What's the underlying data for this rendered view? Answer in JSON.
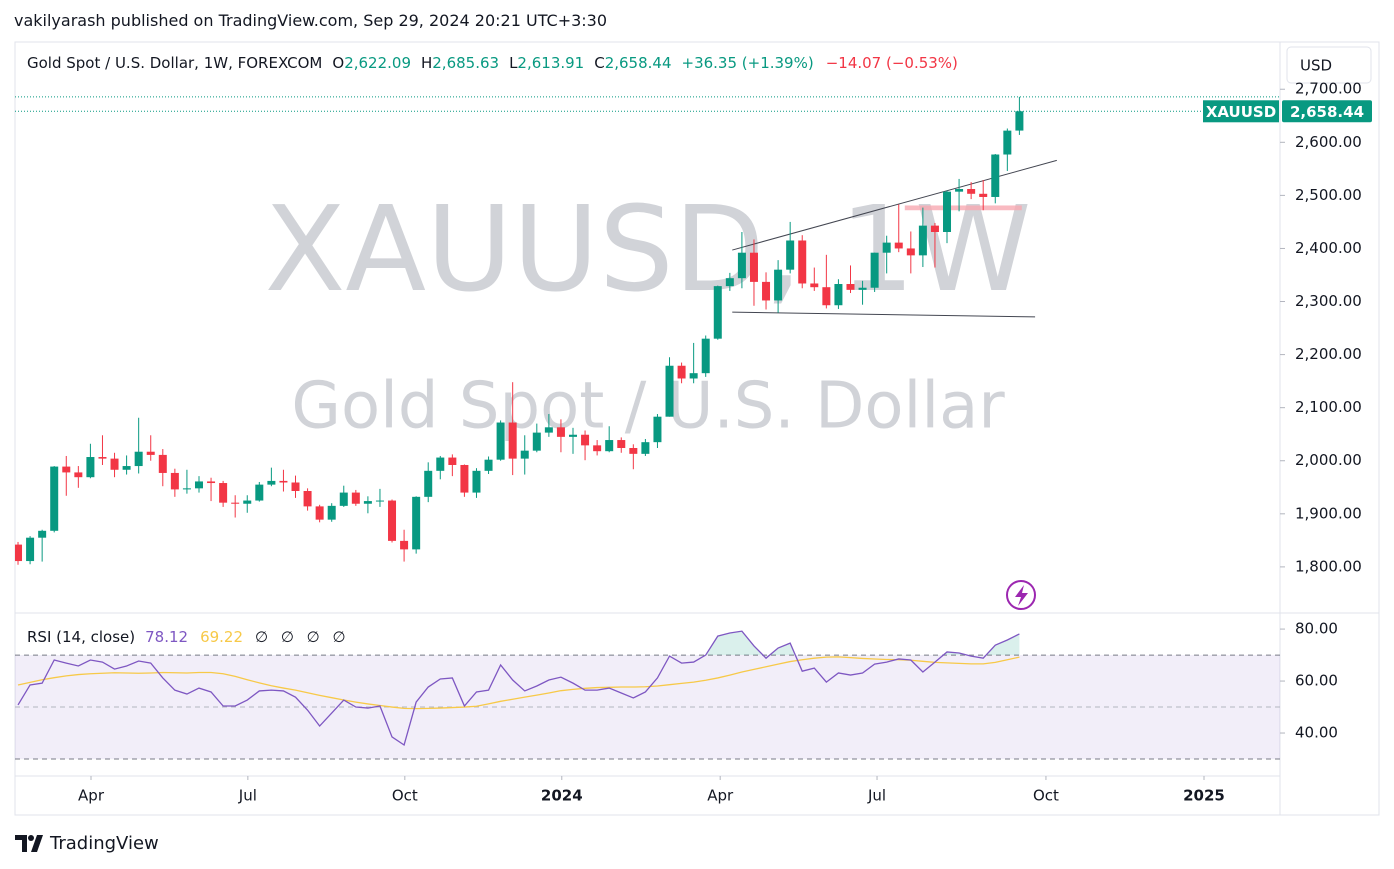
{
  "header": {
    "published": "vakilyarash published on TradingView.com, Sep 29, 2024 20:21 UTC+3:30",
    "currency_button": "USD",
    "brand": "TradingView"
  },
  "chart_data": [
    {
      "type": "candlestick",
      "title": "Gold Spot / U.S. Dollar, 1W, FOREXCOM",
      "ohlc_legend": [
        [
          "O",
          "2,622.09"
        ],
        [
          "H",
          "2,685.63"
        ],
        [
          "L",
          "2,613.91"
        ],
        [
          "C",
          "2,658.44"
        ]
      ],
      "change": "+36.35 (+1.39%)",
      "change_extended": "−14.07 (−0.53%)",
      "watermark": [
        "XAUUSD, 1W",
        "Gold Spot / U.S. Dollar"
      ],
      "symbol": "XAUUSD",
      "last_price": {
        "value": 2658.44,
        "label": "2,658.44"
      },
      "up_color": "#089981",
      "down_color": "#f23645",
      "xlim": [
        -0.25,
        104.6
      ],
      "ylim": [
        1715,
        2789
      ],
      "yticks": [
        {
          "value": 1800,
          "label": "1,800.00"
        },
        {
          "value": 1900,
          "label": "1,900.00"
        },
        {
          "value": 2000,
          "label": "2,000.00"
        },
        {
          "value": 2100,
          "label": "2,100.00"
        },
        {
          "value": 2200,
          "label": "2,200.00"
        },
        {
          "value": 2300,
          "label": "2,300.00"
        },
        {
          "value": 2400,
          "label": "2,400.00"
        },
        {
          "value": 2500,
          "label": "2,500.00"
        },
        {
          "value": 2600,
          "label": "2,600.00"
        },
        {
          "value": 2700,
          "label": "2,700.00"
        }
      ],
      "x": [
        0,
        1,
        2,
        3,
        4,
        5,
        6,
        7,
        8,
        9,
        10,
        11,
        12,
        13,
        14,
        15,
        16,
        17,
        18,
        19,
        20,
        21,
        22,
        23,
        24,
        25,
        26,
        27,
        28,
        29,
        30,
        31,
        32,
        33,
        34,
        35,
        36,
        37,
        38,
        39,
        40,
        41,
        42,
        43,
        44,
        45,
        46,
        47,
        48,
        49,
        50,
        51,
        52,
        53,
        54,
        55,
        56,
        57,
        58,
        59,
        60,
        61,
        62,
        63,
        64,
        65,
        66,
        67,
        68,
        69,
        70,
        71,
        72,
        73,
        74,
        75,
        76,
        77,
        78,
        79,
        80,
        81,
        82,
        83
      ],
      "open": [
        1842,
        1811,
        1855,
        1868,
        1989,
        1978,
        1969,
        2007,
        2004,
        1983,
        1990,
        2017,
        2011,
        1977,
        1946,
        1948,
        1961,
        1958,
        1921,
        1919,
        1925,
        1955,
        1962,
        1959,
        1943,
        1914,
        1889,
        1915,
        1940,
        1919,
        1924,
        1925,
        1849,
        1833,
        1932,
        1981,
        2006,
        1992,
        1940,
        1981,
        2002,
        2072,
        2004,
        2019,
        2053,
        2063,
        2045,
        2049,
        2029,
        2018,
        2039,
        2024,
        2013,
        2035,
        2083,
        2179,
        2155,
        2165,
        2230,
        2329,
        2344,
        2392,
        2337,
        2302,
        2360,
        2415,
        2334,
        2327,
        2293,
        2333,
        2322,
        2326,
        2392,
        2411,
        2400,
        2387,
        2443,
        2431,
        2507,
        2512,
        2503,
        2497,
        2577,
        2622.09
      ],
      "high": [
        1847,
        1858,
        1870,
        1990,
        2009,
        1990,
        2032,
        2048,
        2015,
        2010,
        2081,
        2048,
        2022,
        1985,
        1983,
        1971,
        1968,
        1962,
        1935,
        1935,
        1960,
        1987,
        1983,
        1972,
        1948,
        1917,
        1920,
        1953,
        1945,
        1933,
        1947,
        1927,
        1870,
        1933,
        1997,
        2009,
        2012,
        1993,
        1986,
        2008,
        2076,
        2148,
        2048,
        2070,
        2088,
        2078,
        2062,
        2057,
        2039,
        2065,
        2044,
        2031,
        2041,
        2088,
        2195,
        2185,
        2222,
        2236,
        2330,
        2354,
        2431,
        2417,
        2355,
        2378,
        2450,
        2425,
        2364,
        2388,
        2342,
        2368,
        2339,
        2392,
        2424,
        2483,
        2432,
        2477,
        2448,
        2509,
        2531,
        2525,
        2529,
        2578,
        2626,
        2685.63
      ],
      "low": [
        1804,
        1805,
        1810,
        1865,
        1934,
        1949,
        1967,
        1992,
        1969,
        1974,
        1976,
        2000,
        1952,
        1932,
        1938,
        1940,
        1924,
        1913,
        1893,
        1902,
        1923,
        1952,
        1942,
        1930,
        1906,
        1884,
        1885,
        1913,
        1915,
        1901,
        1913,
        1846,
        1810,
        1825,
        1922,
        1965,
        1971,
        1932,
        1930,
        1975,
        2000,
        1973,
        1974,
        2016,
        2045,
        2016,
        2013,
        2001,
        2010,
        2016,
        2015,
        1984,
        2009,
        2024,
        2083,
        2146,
        2146,
        2158,
        2228,
        2320,
        2325,
        2292,
        2285,
        2279,
        2353,
        2325,
        2320,
        2287,
        2286,
        2316,
        2294,
        2318,
        2353,
        2393,
        2353,
        2365,
        2364,
        2410,
        2470,
        2493,
        2472,
        2485,
        2546,
        2613.91
      ],
      "close": [
        1811,
        1855,
        1868,
        1989,
        1978,
        1969,
        2007,
        2004,
        1983,
        1990,
        2017,
        2011,
        1977,
        1946,
        1948,
        1961,
        1958,
        1921,
        1919,
        1925,
        1955,
        1962,
        1959,
        1943,
        1914,
        1889,
        1915,
        1940,
        1919,
        1924,
        1925,
        1849,
        1833,
        1932,
        1981,
        2006,
        1992,
        1940,
        1981,
        2002,
        2072,
        2004,
        2019,
        2053,
        2063,
        2045,
        2049,
        2029,
        2018,
        2039,
        2024,
        2013,
        2035,
        2083,
        2179,
        2155,
        2165,
        2230,
        2329,
        2344,
        2392,
        2337,
        2302,
        2360,
        2415,
        2334,
        2327,
        2293,
        2333,
        2322,
        2326,
        2392,
        2411,
        2400,
        2387,
        2443,
        2431,
        2507,
        2512,
        2503,
        2497,
        2577,
        2622,
        2658.44
      ],
      "trendlines": [
        {
          "x": [
            59.2,
            86.1
          ],
          "y": [
            2397,
            2566
          ],
          "color": "#434651"
        },
        {
          "x": [
            59.2,
            84.3
          ],
          "y": [
            2280,
            2271
          ],
          "color": "#434651"
        }
      ],
      "zone": {
        "x": [
          73.5,
          83.2
        ],
        "y": [
          2472,
          2481
        ],
        "color": "#f7a9b2"
      }
    },
    {
      "type": "line",
      "title": "RSI (14, close)",
      "placeholders": "∅ ∅ ∅ ∅",
      "xlim": [
        -0.25,
        104.6
      ],
      "ylim": [
        27.7,
        85.8
      ],
      "yticks": [
        {
          "value": 40,
          "label": "40.00"
        },
        {
          "value": 60,
          "label": "60.00"
        },
        {
          "value": 80,
          "label": "80.00"
        }
      ],
      "bands": {
        "upper": 70,
        "middle": 50,
        "lower": 30
      },
      "xticks": [
        {
          "value": 6.05,
          "label": "Apr"
        },
        {
          "value": 19.05,
          "label": "Jul"
        },
        {
          "value": 32.06,
          "label": "Oct"
        },
        {
          "value": 45.07,
          "label": "2024",
          "bold": true
        },
        {
          "value": 58.2,
          "label": "Apr"
        },
        {
          "value": 71.2,
          "label": "Jul"
        },
        {
          "value": 85.2,
          "label": "Oct"
        },
        {
          "value": 98.3,
          "label": "2025",
          "bold": true
        }
      ],
      "x": [
        0,
        1,
        2,
        3,
        4,
        5,
        6,
        7,
        8,
        9,
        10,
        11,
        12,
        13,
        14,
        15,
        16,
        17,
        18,
        19,
        20,
        21,
        22,
        23,
        24,
        25,
        26,
        27,
        28,
        29,
        30,
        31,
        32,
        33,
        34,
        35,
        36,
        37,
        38,
        39,
        40,
        41,
        42,
        43,
        44,
        45,
        46,
        47,
        48,
        49,
        50,
        51,
        52,
        53,
        54,
        55,
        56,
        57,
        58,
        59,
        60,
        61,
        62,
        63,
        64,
        65,
        66,
        67,
        68,
        69,
        70,
        71,
        72,
        73,
        74,
        75,
        76,
        77,
        78,
        79,
        80,
        81,
        82,
        83
      ],
      "series": [
        {
          "color": "#7e57c2",
          "last_label": "78.12",
          "values": [
            50.8,
            58.5,
            59.2,
            68.1,
            66.9,
            65.8,
            68.1,
            67.3,
            64.6,
            65.8,
            67.7,
            66.9,
            61.2,
            56.5,
            55.0,
            57.3,
            55.8,
            50.4,
            50.4,
            52.7,
            56.2,
            56.5,
            56.2,
            53.8,
            48.8,
            42.7,
            47.7,
            52.7,
            50.0,
            49.6,
            50.4,
            38.5,
            35.4,
            51.9,
            57.7,
            60.8,
            61.2,
            50.4,
            55.8,
            56.5,
            66.2,
            60.4,
            56.2,
            58.1,
            60.4,
            61.5,
            59.2,
            56.5,
            56.5,
            57.3,
            55.4,
            53.5,
            55.8,
            61.2,
            69.6,
            66.9,
            67.3,
            70.0,
            77.3,
            78.5,
            79.2,
            73.5,
            68.8,
            72.7,
            74.6,
            63.8,
            65.0,
            59.6,
            63.1,
            62.3,
            63.1,
            66.5,
            67.3,
            68.5,
            68.1,
            63.5,
            67.3,
            71.2,
            70.8,
            69.6,
            68.8,
            73.8,
            75.8,
            78.12
          ]
        },
        {
          "color": "#f7c948",
          "last_label": "69.22",
          "values": [
            58.5,
            59.5,
            60.5,
            61.3,
            62.0,
            62.5,
            62.8,
            63.0,
            63.2,
            63.1,
            63.0,
            63.1,
            63.3,
            63.2,
            63.1,
            63.3,
            63.3,
            62.8,
            61.8,
            60.5,
            59.3,
            58.2,
            57.3,
            56.5,
            55.5,
            54.5,
            53.6,
            52.7,
            51.9,
            51.2,
            50.6,
            50.0,
            49.5,
            49.4,
            49.5,
            49.6,
            49.8,
            50.0,
            50.3,
            51.2,
            52.2,
            53.0,
            53.8,
            54.6,
            55.4,
            56.3,
            56.8,
            57.2,
            57.5,
            57.6,
            57.7,
            57.7,
            57.8,
            58.1,
            58.6,
            59.1,
            59.6,
            60.3,
            61.2,
            62.3,
            63.5,
            64.5,
            65.5,
            66.5,
            67.5,
            68.2,
            68.8,
            69.2,
            69.3,
            69.0,
            68.7,
            68.5,
            68.3,
            68.2,
            68.0,
            67.6,
            67.2,
            67.0,
            66.8,
            66.6,
            66.6,
            67.2,
            68.2,
            69.22
          ]
        }
      ]
    }
  ]
}
